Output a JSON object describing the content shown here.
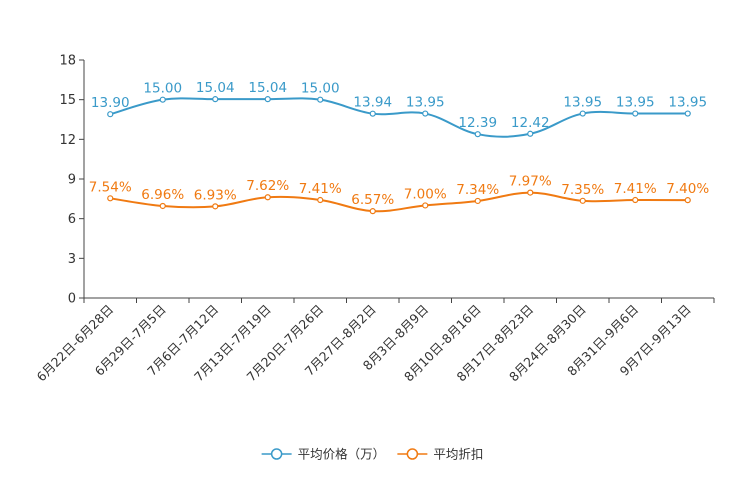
{
  "chart_data": {
    "type": "line",
    "title": "",
    "xlabel": "",
    "ylabel": "",
    "ylim": [
      0,
      18
    ],
    "yticks": [
      0,
      3,
      6,
      9,
      12,
      15,
      18
    ],
    "grid": false,
    "legend_position": "bottom-center",
    "categories": [
      "6月22日-6月28日",
      "6月29日-7月5日",
      "7月6日-7月12日",
      "7月13日-7月19日",
      "7月20日-7月26日",
      "7月27日-8月2日",
      "8月3日-8月9日",
      "8月10日-8月16日",
      "8月17日-8月23日",
      "8月24日-8月30日",
      "8月31日-9月6日",
      "9月7日-9月13日"
    ],
    "series": [
      {
        "name": "平均价格（万）",
        "color": "#3a9ac9",
        "values": [
          13.9,
          15.0,
          15.04,
          15.04,
          15.0,
          13.94,
          13.95,
          12.39,
          12.42,
          13.95,
          13.95,
          13.95
        ],
        "labels": [
          "13.90",
          "15.00",
          "15.04",
          "15.04",
          "15.00",
          "13.94",
          "13.95",
          "12.39",
          "12.42",
          "13.95",
          "13.95",
          "13.95"
        ]
      },
      {
        "name": "平均折扣",
        "color": "#f07a12",
        "values": [
          7.54,
          6.96,
          6.93,
          7.62,
          7.41,
          6.57,
          7.0,
          7.34,
          7.97,
          7.35,
          7.41,
          7.4
        ],
        "labels": [
          "7.54%",
          "6.96%",
          "6.93%",
          "7.62%",
          "7.41%",
          "6.57%",
          "7.00%",
          "7.34%",
          "7.97%",
          "7.35%",
          "7.41%",
          "7.40%"
        ]
      }
    ]
  }
}
